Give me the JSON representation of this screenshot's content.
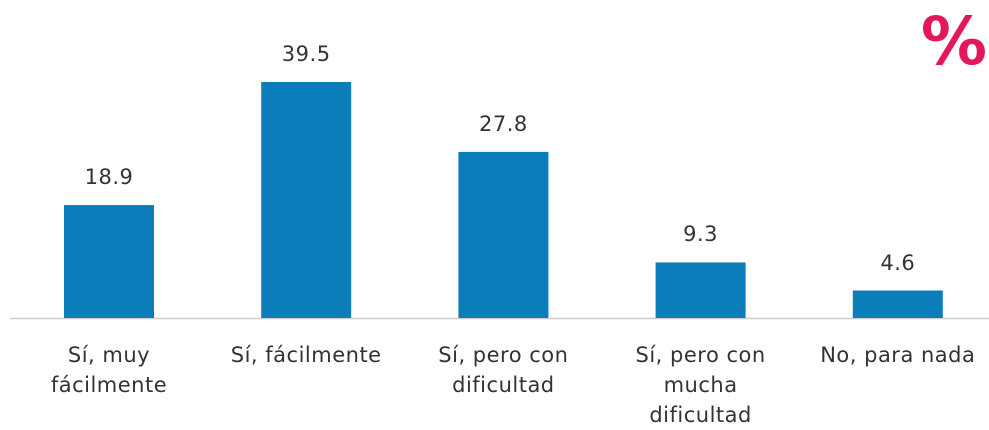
{
  "chart_data": {
    "type": "bar",
    "annotation": "%",
    "categories": [
      "Sí, muy fácilmente",
      "Sí, fácilmente",
      "Sí, pero con dificultad",
      "Sí, pero con mucha dificultad",
      "No, para nada"
    ],
    "values": [
      18.9,
      39.5,
      27.8,
      9.3,
      4.6
    ],
    "color": "#0a7dba"
  }
}
